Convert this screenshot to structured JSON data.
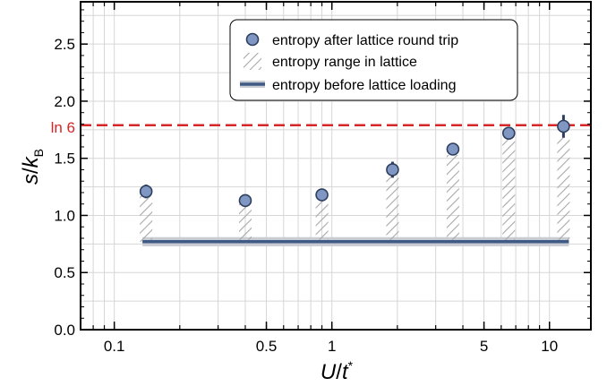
{
  "chart_data": {
    "type": "scatter",
    "xscale": "log",
    "xlim": [
      0.07,
      15.5
    ],
    "ylim": [
      0,
      2.87
    ],
    "grid": true,
    "xlabel": {
      "italic_1": "U",
      "mid": "/",
      "italic_2": "t",
      "sup": "*"
    },
    "ylabel": {
      "italic_1": "s",
      "mid": "/",
      "italic_2": "k",
      "sub": "B"
    },
    "xticks": [
      {
        "value": 0.1,
        "label": "0.1"
      },
      {
        "value": 0.5,
        "label": "0.5"
      },
      {
        "value": 1,
        "label": "1"
      },
      {
        "value": 5,
        "label": "5"
      },
      {
        "value": 10,
        "label": "10"
      }
    ],
    "yticks": [
      {
        "value": 0.0,
        "label": "0.0"
      },
      {
        "value": 0.5,
        "label": "0.5"
      },
      {
        "value": 1.0,
        "label": "1.0"
      },
      {
        "value": 1.5,
        "label": "1.5"
      },
      {
        "value": 2.0,
        "label": "2.0"
      },
      {
        "value": 2.5,
        "label": "2.5"
      }
    ],
    "reference_line": {
      "label": "ln 6",
      "value": 1.79,
      "color": "#d62728",
      "style": "dashed"
    },
    "baseline": {
      "value": 0.77,
      "band": [
        0.73,
        0.81
      ],
      "x_range": [
        0.14,
        11.6
      ],
      "color": "#3f5a85"
    },
    "series": [
      {
        "name": "entropy after lattice round trip",
        "kind": "points",
        "color": "#7f97c2",
        "edge": "#2e3f5e",
        "points": [
          {
            "x": 0.14,
            "y": 1.21,
            "err": 0.06
          },
          {
            "x": 0.4,
            "y": 1.13,
            "err": 0.04
          },
          {
            "x": 0.9,
            "y": 1.18,
            "err": 0.04
          },
          {
            "x": 1.9,
            "y": 1.4,
            "err": 0.07
          },
          {
            "x": 3.6,
            "y": 1.58,
            "err": 0.05
          },
          {
            "x": 6.5,
            "y": 1.72,
            "err": 0.04
          },
          {
            "x": 11.6,
            "y": 1.78,
            "err": 0.1
          }
        ]
      },
      {
        "name": "entropy range in lattice",
        "kind": "hatched-bars",
        "color": "#a8a8a8",
        "bars": [
          {
            "x": 0.14,
            "y0": 0.77,
            "y1": 1.17
          },
          {
            "x": 0.4,
            "y0": 0.77,
            "y1": 1.1
          },
          {
            "x": 0.9,
            "y0": 0.77,
            "y1": 1.14
          },
          {
            "x": 1.9,
            "y0": 0.77,
            "y1": 1.34
          },
          {
            "x": 3.6,
            "y0": 0.77,
            "y1": 1.53
          },
          {
            "x": 6.5,
            "y0": 0.77,
            "y1": 1.68
          },
          {
            "x": 11.6,
            "y0": 0.77,
            "y1": 1.68
          }
        ]
      },
      {
        "name": "entropy before lattice loading",
        "kind": "line"
      }
    ],
    "legend": {
      "position": "top-right",
      "items": [
        "entropy after lattice round trip",
        "entropy range in lattice",
        "entropy before lattice loading"
      ]
    }
  }
}
